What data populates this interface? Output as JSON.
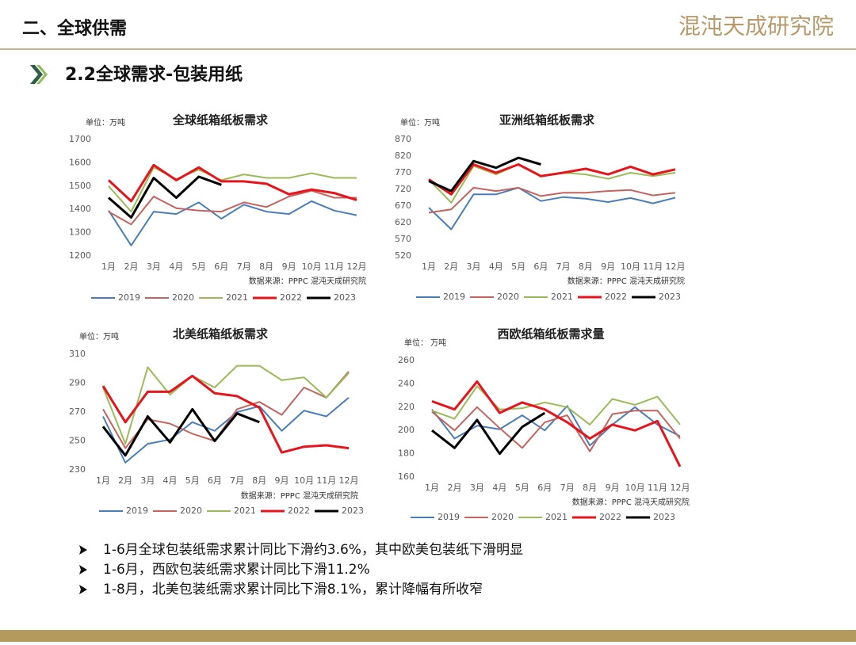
{
  "header": {
    "section": "二、全球供需",
    "logo": "混沌天成研究院",
    "subtitle": "2.2全球需求-包装用纸"
  },
  "bullets": [
    "1-6月全球包装纸需求累计同比下滑约3.6%，其中欧美包装纸下滑明显",
    "1-6月，西欧包装纸需求累计同比下滑11.2%",
    "1-8月，北美包装纸需求累计同比下滑8.1%，累计降幅有所收窄"
  ],
  "chart_data": [
    {
      "type": "line",
      "title": "全球纸箱纸板需求",
      "unit": "单位：万吨",
      "source": "数据来源：PPPC 混沌天成研究院",
      "categories": [
        "1月",
        "2月",
        "3月",
        "4月",
        "5月",
        "6月",
        "7月",
        "8月",
        "9月",
        "10月",
        "11月",
        "12月"
      ],
      "ylim": [
        1200,
        1700
      ],
      "yticks": [
        1200,
        1300,
        1400,
        1500,
        1600,
        1700
      ],
      "series": [
        {
          "name": "2019",
          "color": "#4a7ebb",
          "values": [
            1395,
            1245,
            1390,
            1380,
            1430,
            1360,
            1420,
            1390,
            1380,
            1435,
            1395,
            1375
          ]
        },
        {
          "name": "2020",
          "color": "#c5645f",
          "values": [
            1390,
            1335,
            1455,
            1405,
            1395,
            1390,
            1430,
            1410,
            1455,
            1480,
            1450,
            1450
          ]
        },
        {
          "name": "2021",
          "color": "#9bbb59",
          "values": [
            1500,
            1390,
            1580,
            1530,
            1570,
            1525,
            1550,
            1535,
            1535,
            1555,
            1535,
            1535
          ]
        },
        {
          "name": "2022",
          "color": "#e8141b",
          "values": [
            1525,
            1435,
            1590,
            1525,
            1580,
            1520,
            1520,
            1510,
            1465,
            1485,
            1470,
            1440
          ]
        },
        {
          "name": "2023",
          "color": "#000000",
          "values": [
            1450,
            1365,
            1535,
            1450,
            1540,
            1505,
            null,
            null,
            null,
            null,
            null,
            null
          ]
        }
      ]
    },
    {
      "type": "line",
      "title": "亚洲纸箱纸板需求",
      "unit": "单位：万吨",
      "source": "数据来源：PPPC 混沌天成研究院",
      "categories": [
        "1月",
        "2月",
        "3月",
        "4月",
        "5月",
        "6月",
        "7月",
        "8月",
        "9月",
        "10月",
        "11月",
        "12月"
      ],
      "ylim": [
        520,
        870
      ],
      "yticks": [
        520,
        570,
        620,
        670,
        720,
        770,
        820,
        870
      ],
      "series": [
        {
          "name": "2019",
          "color": "#4a7ebb",
          "values": [
            665,
            600,
            705,
            705,
            725,
            685,
            697,
            692,
            682,
            694,
            678,
            695
          ]
        },
        {
          "name": "2020",
          "color": "#c5645f",
          "values": [
            650,
            660,
            725,
            715,
            725,
            700,
            710,
            710,
            715,
            718,
            702,
            710
          ]
        },
        {
          "name": "2021",
          "color": "#9bbb59",
          "values": [
            750,
            680,
            790,
            765,
            795,
            758,
            770,
            765,
            752,
            770,
            760,
            770
          ]
        },
        {
          "name": "2022",
          "color": "#e8141b",
          "values": [
            750,
            705,
            795,
            770,
            795,
            760,
            770,
            782,
            765,
            788,
            765,
            780
          ]
        },
        {
          "name": "2023",
          "color": "#000000",
          "values": [
            745,
            715,
            805,
            785,
            815,
            795,
            null,
            null,
            null,
            null,
            null,
            null
          ]
        }
      ]
    },
    {
      "type": "line",
      "title": "北美纸箱纸板需求",
      "unit": "单位：万吨",
      "source": "数据来源：PPPC 混沌天成研究院",
      "categories": [
        "1月",
        "2月",
        "3月",
        "4月",
        "5月",
        "6月",
        "7月",
        "8月",
        "9月",
        "10月",
        "11月",
        "12月"
      ],
      "ylim": [
        230,
        310
      ],
      "yticks": [
        230,
        250,
        270,
        290,
        310
      ],
      "series": [
        {
          "name": "2019",
          "color": "#4a7ebb",
          "values": [
            267,
            235,
            248,
            251,
            263,
            257,
            270,
            274,
            257,
            271,
            267,
            280
          ]
        },
        {
          "name": "2020",
          "color": "#c5645f",
          "values": [
            272,
            245,
            265,
            262,
            255,
            250,
            272,
            277,
            268,
            287,
            280,
            298
          ]
        },
        {
          "name": "2021",
          "color": "#9bbb59",
          "values": [
            287,
            248,
            301,
            282,
            295,
            287,
            302,
            302,
            292,
            294,
            280,
            297
          ]
        },
        {
          "name": "2022",
          "color": "#e8141b",
          "values": [
            288,
            263,
            284,
            284,
            295,
            283,
            281,
            273,
            242,
            246,
            247,
            245
          ]
        },
        {
          "name": "2023",
          "color": "#000000",
          "values": [
            260,
            240,
            267,
            249,
            272,
            250,
            269,
            263,
            null,
            null,
            null,
            null
          ]
        }
      ]
    },
    {
      "type": "line",
      "title": "西欧纸箱纸板需求量",
      "unit": "单位： 万吨",
      "source": "数据来源：PPPC 混沌天成研究院",
      "categories": [
        "1月",
        "2月",
        "3月",
        "4月",
        "5月",
        "6月",
        "7月",
        "8月",
        "9月",
        "10月",
        "11月",
        "12月"
      ],
      "ylim": [
        160,
        260
      ],
      "yticks": [
        160,
        180,
        200,
        220,
        240,
        260
      ],
      "series": [
        {
          "name": "2019",
          "color": "#4a7ebb",
          "values": [
            218,
            193,
            204,
            201,
            213,
            200,
            221,
            187,
            205,
            220,
            205,
            195
          ]
        },
        {
          "name": "2020",
          "color": "#c5645f",
          "values": [
            216,
            200,
            220,
            202,
            185,
            207,
            213,
            182,
            214,
            217,
            217,
            193
          ]
        },
        {
          "name": "2021",
          "color": "#9bbb59",
          "values": [
            217,
            210,
            238,
            218,
            219,
            224,
            220,
            205,
            227,
            222,
            229,
            205
          ]
        },
        {
          "name": "2022",
          "color": "#e8141b",
          "values": [
            225,
            218,
            242,
            215,
            224,
            218,
            207,
            193,
            205,
            200,
            208,
            169
          ]
        },
        {
          "name": "2023",
          "color": "#000000",
          "values": [
            200,
            185,
            209,
            180,
            203,
            215,
            null,
            null,
            null,
            null,
            null,
            null
          ]
        }
      ]
    }
  ]
}
